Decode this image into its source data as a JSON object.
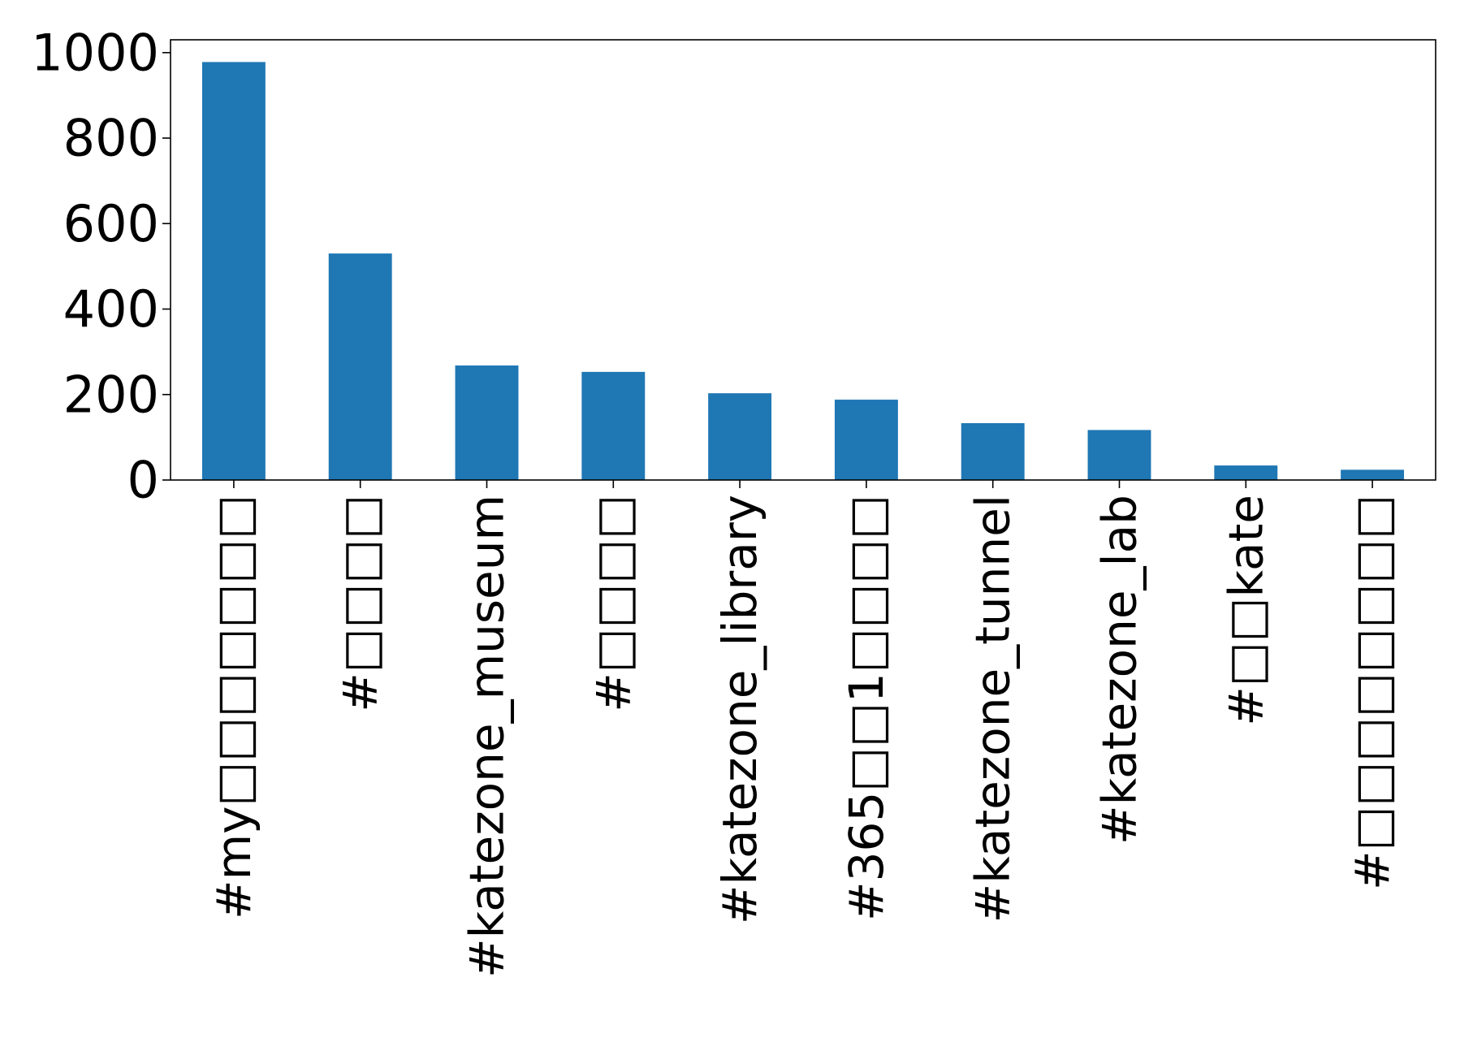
{
  "chart_data": {
    "type": "bar",
    "title": "",
    "xlabel": "",
    "ylabel": "",
    "categories": [
      "#my□□□□□□□",
      "#□□□□",
      "#katezone_museum",
      "#□□□□",
      "#katezone_library",
      "#365□□1□□□□",
      "#katezone_tunnel",
      "#katezone_lab",
      "#□□kate",
      "#□□□□□□□□"
    ],
    "values": [
      978,
      530,
      268,
      253,
      203,
      188,
      133,
      117,
      34,
      24
    ],
    "ylim": [
      0,
      1030
    ],
    "yticks": [
      0,
      200,
      400,
      600,
      800,
      1000
    ],
    "grid": false,
    "legend": "none",
    "bar_color": "#1f77b4",
    "axis_color": "#000000"
  }
}
